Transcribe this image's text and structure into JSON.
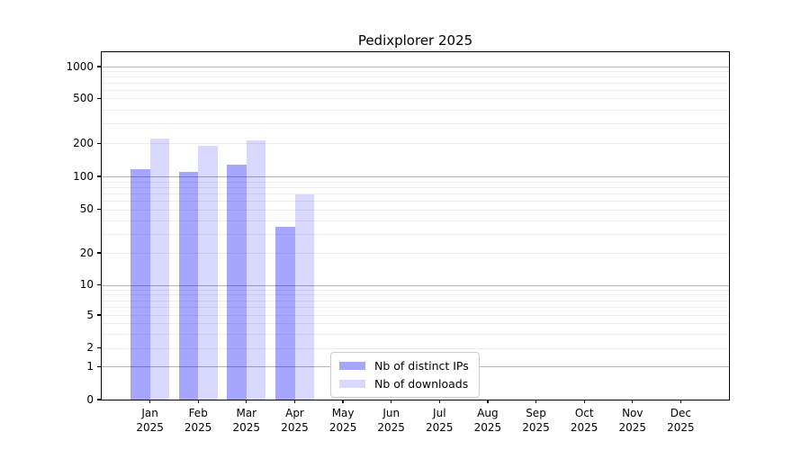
{
  "figure": {
    "title": "Pedixplorer 2025"
  },
  "chart_data": {
    "type": "bar",
    "title": "Pedixplorer 2025",
    "xlabel": "",
    "ylabel": "",
    "x_categories": [
      {
        "month": "Jan",
        "year": "2025"
      },
      {
        "month": "Feb",
        "year": "2025"
      },
      {
        "month": "Mar",
        "year": "2025"
      },
      {
        "month": "Apr",
        "year": "2025"
      },
      {
        "month": "May",
        "year": "2025"
      },
      {
        "month": "Jun",
        "year": "2025"
      },
      {
        "month": "Jul",
        "year": "2025"
      },
      {
        "month": "Aug",
        "year": "2025"
      },
      {
        "month": "Sep",
        "year": "2025"
      },
      {
        "month": "Oct",
        "year": "2025"
      },
      {
        "month": "Nov",
        "year": "2025"
      },
      {
        "month": "Dec",
        "year": "2025"
      }
    ],
    "series": [
      {
        "name": "Nb of distinct IPs",
        "color": "rgba(0,0,255,0.35)",
        "color_on_white": "#a6a6ff",
        "values": [
          117,
          110,
          127,
          35,
          0,
          0,
          0,
          0,
          0,
          0,
          0,
          0
        ]
      },
      {
        "name": "Nb of downloads",
        "color": "rgba(0,0,255,0.15)",
        "color_on_white": "#d9d9ff",
        "values": [
          219,
          189,
          212,
          68,
          0,
          0,
          0,
          0,
          0,
          0,
          0,
          0
        ]
      }
    ],
    "yscale": "log-like (0 at baseline, labeled ticks 1,2,5 per decade)",
    "yticks": [
      0,
      1,
      2,
      5,
      10,
      20,
      50,
      100,
      200,
      500,
      1000
    ],
    "ytick_labels": [
      "0",
      "1",
      "2",
      "5",
      "10",
      "20",
      "50",
      "100",
      "200",
      "500",
      "1000"
    ],
    "ylim_top_approx": 1340,
    "grid": true,
    "legend": {
      "position": "inside lower-center",
      "items": [
        "Nb of distinct IPs",
        "Nb of downloads"
      ]
    }
  },
  "colors": {
    "background": "#ffffff",
    "spine": "#000000",
    "grid_major": "#b3b3b3",
    "grid_minor": "#ececec",
    "legend_border": "#cccccc",
    "text": "#000000"
  }
}
